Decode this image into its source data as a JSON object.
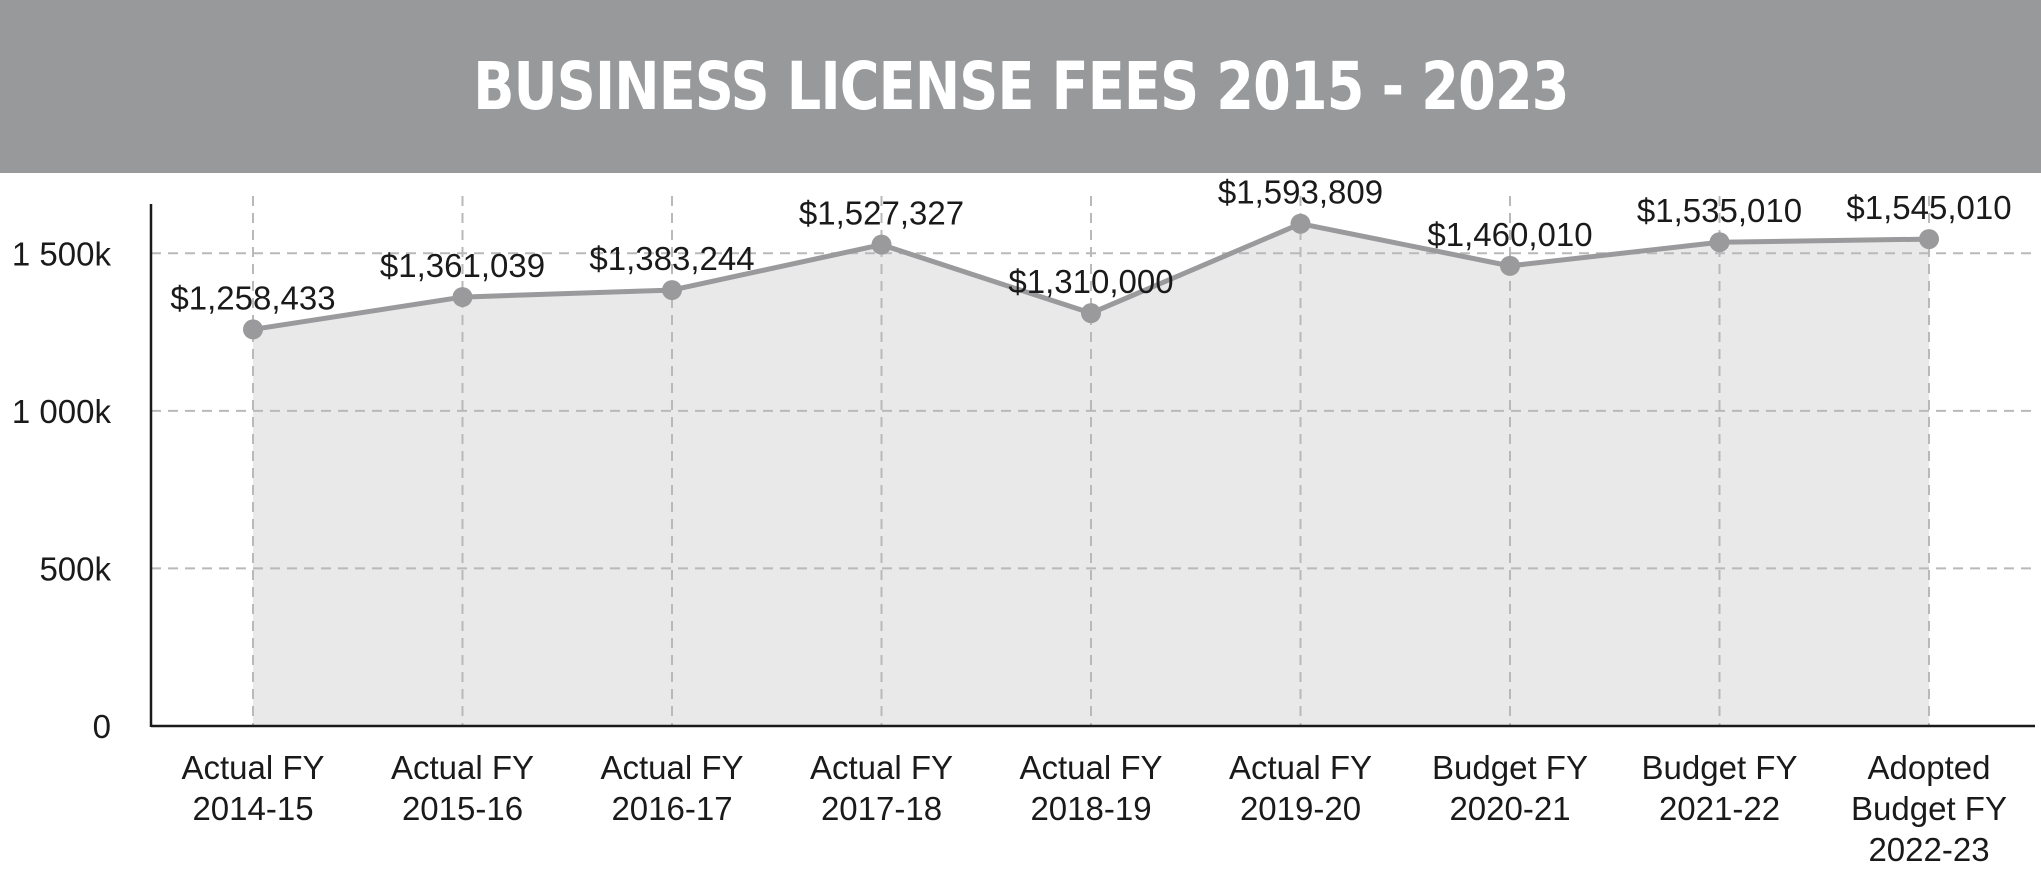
{
  "title": "BUSINESS LICENSE FEES 2015 - 2023",
  "colors": {
    "header_bg": "#98999b",
    "line": "#9a9a9c",
    "marker": "#9a9a9c",
    "area_fill": "#e9e9e9",
    "grid": "#b9b9b9",
    "axis": "#1a1a1a"
  },
  "chart_data": {
    "type": "area",
    "title": "BUSINESS LICENSE FEES 2015 - 2023",
    "xlabel": "",
    "ylabel": "",
    "ylim": [
      0,
      1650000
    ],
    "yticks": [
      0,
      500000,
      1000000,
      1500000
    ],
    "ytick_labels": [
      "0",
      "500k",
      "1 000k",
      "1 500k"
    ],
    "grid": "dashed, horizontal and vertical",
    "categories": [
      [
        "Actual FY",
        "2014-15"
      ],
      [
        "Actual FY",
        "2015-16"
      ],
      [
        "Actual FY",
        "2016-17"
      ],
      [
        "Actual FY",
        "2017-18"
      ],
      [
        "Actual  FY",
        "2018-19"
      ],
      [
        "Actual FY",
        "2019-20"
      ],
      [
        "Budget FY",
        "2020-21"
      ],
      [
        "Budget FY",
        "2021-22"
      ],
      [
        "Adopted",
        "Budget FY",
        "2022-23"
      ]
    ],
    "series": [
      {
        "values": [
          1258433,
          1361039,
          1383244,
          1527327,
          1310000,
          1593809,
          1460010,
          1535010,
          1545010
        ],
        "labels": [
          "$1,258,433",
          "$1,361,039",
          "$1,383,244",
          "$1,527,327",
          "$1,310,000",
          "$1,593,809",
          "$1,460,010",
          "$1,535,010",
          "$1,545,010"
        ]
      }
    ]
  }
}
